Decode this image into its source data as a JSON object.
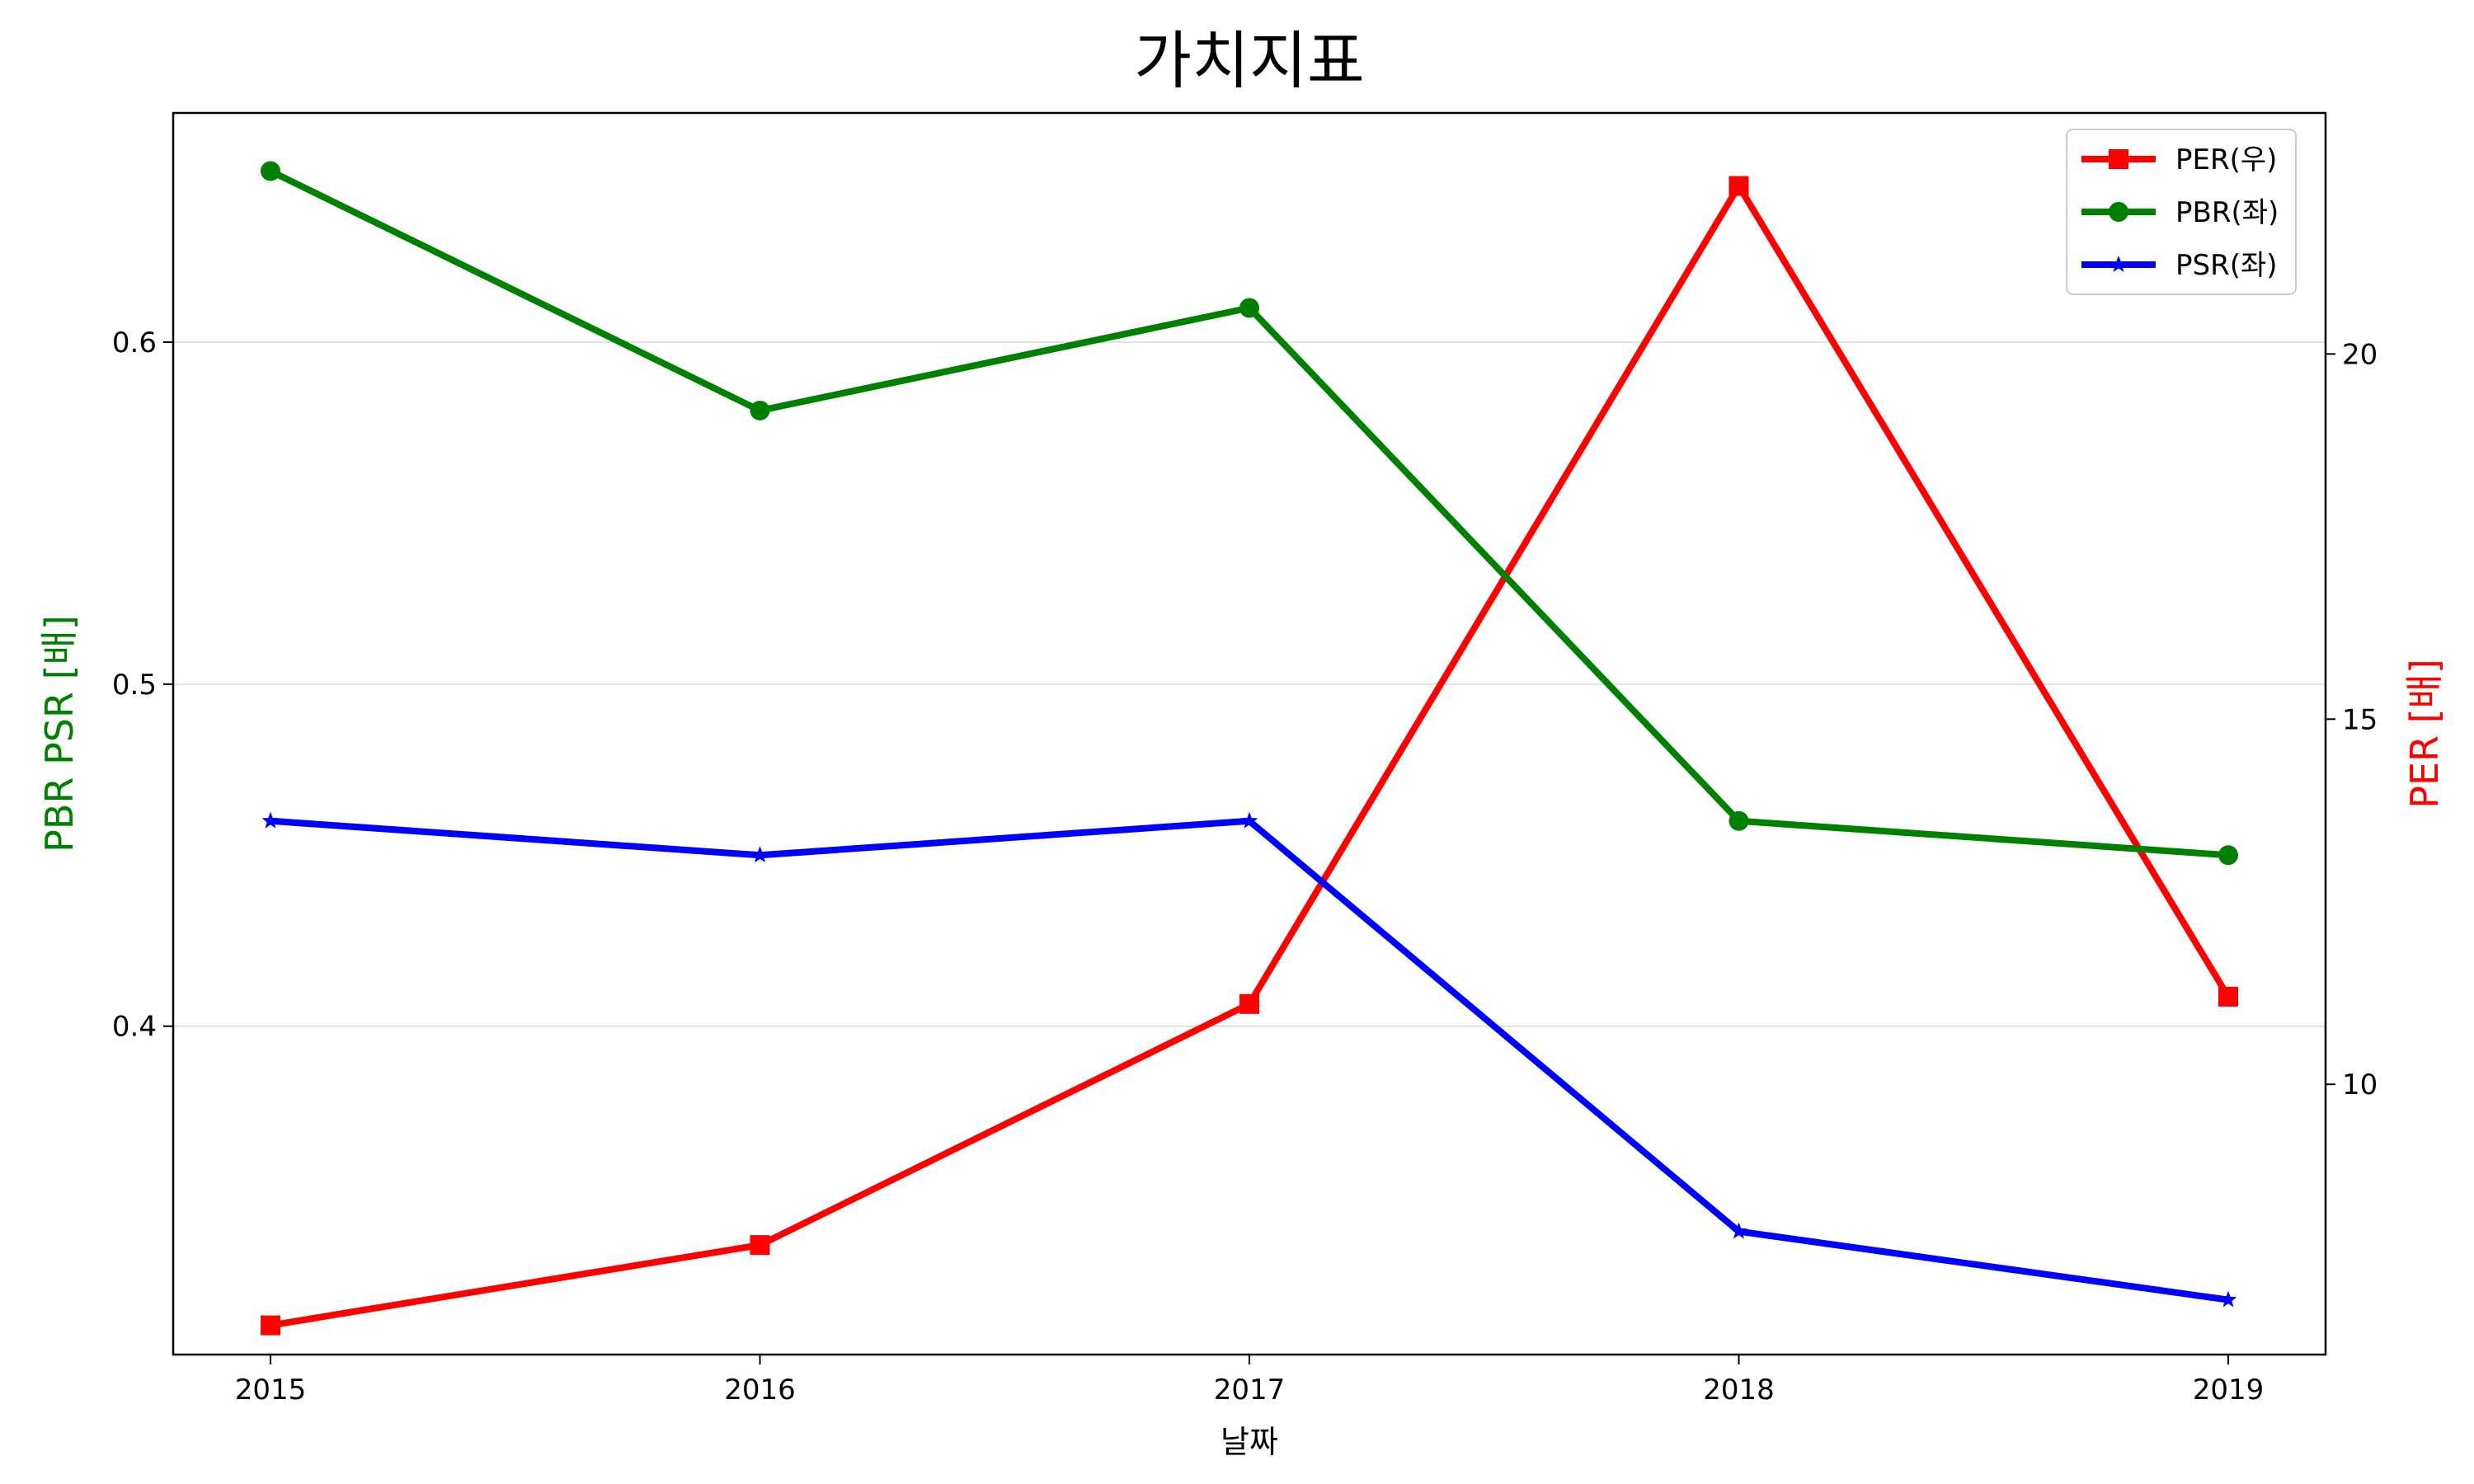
{
  "chart_data": {
    "type": "line",
    "title": "가치지표",
    "xlabel": "날짜",
    "ylabel_left": "PBR PSR [배]",
    "ylabel_right": "PER [배]",
    "ylabel_left_color": "#008000",
    "ylabel_right_color": "#ff0000",
    "categories": [
      "2015",
      "2016",
      "2017",
      "2018",
      "2019"
    ],
    "ylim_left": [
      0.304,
      0.667
    ],
    "ylim_right": [
      6.3,
      23.3
    ],
    "yticks_left": [
      0.4,
      0.5,
      0.6
    ],
    "yticks_left_labels": [
      "0.4",
      "0.5",
      "0.6"
    ],
    "yticks_right": [
      10,
      15,
      20
    ],
    "yticks_right_labels": [
      "10",
      "15",
      "20"
    ],
    "grid": "horizontal-left",
    "legend_position": "top-right",
    "series": [
      {
        "name": "PER(우)",
        "axis": "right",
        "color": "#ff0000",
        "marker": "square",
        "values": [
          6.7,
          7.8,
          11.1,
          22.3,
          11.2
        ]
      },
      {
        "name": "PBR(좌)",
        "axis": "left",
        "color": "#008000",
        "marker": "circle",
        "values": [
          0.65,
          0.58,
          0.61,
          0.46,
          0.45
        ]
      },
      {
        "name": "PSR(좌)",
        "axis": "left",
        "color": "#0000ff",
        "marker": "star",
        "values": [
          0.46,
          0.45,
          0.46,
          0.34,
          0.32
        ]
      }
    ]
  }
}
